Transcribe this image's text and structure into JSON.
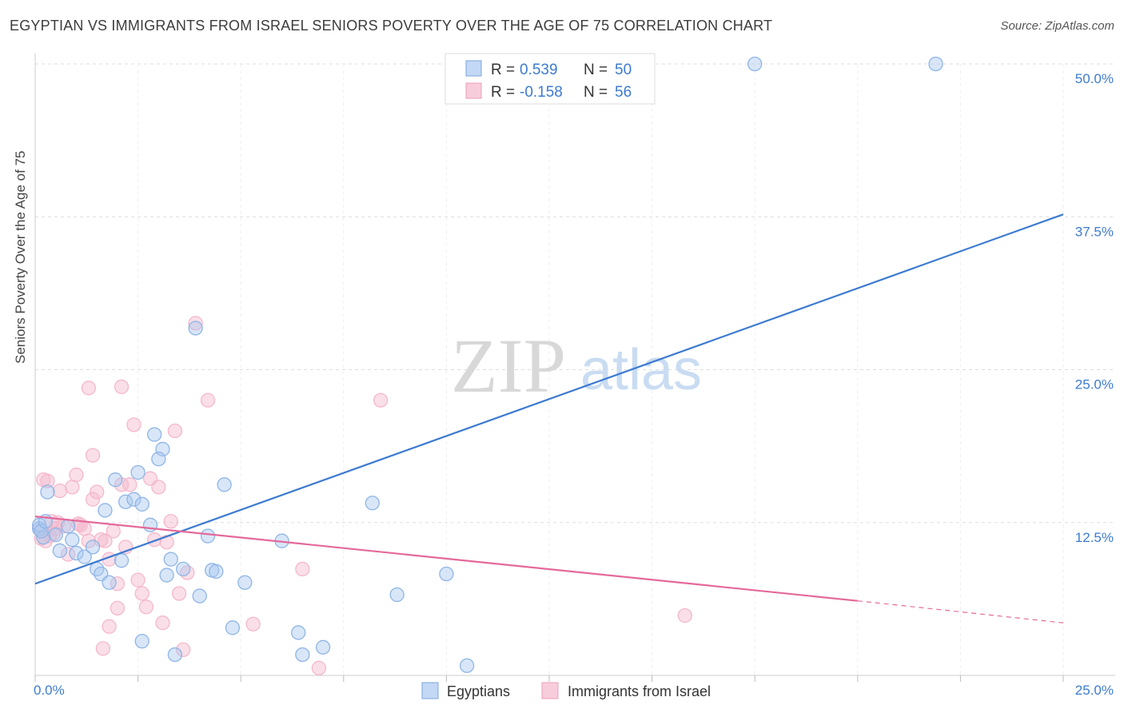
{
  "title": "EGYPTIAN VS IMMIGRANTS FROM ISRAEL SENIORS POVERTY OVER THE AGE OF 75 CORRELATION CHART",
  "source": "Source: ZipAtlas.com",
  "watermark": {
    "zip": "ZIP",
    "atlas": "atlas"
  },
  "colors": {
    "blue": "#3d7bd0",
    "blue_fill": "#a9c8ef",
    "pink": "#e4699a",
    "pink_fill": "#f5b8cc",
    "grid": "#dddddd",
    "axis_text": "#3d7bd0"
  },
  "legend_top": [
    {
      "r_label": "R = ",
      "r_value": "0.539",
      "n_label": "N = ",
      "n_value": "50",
      "color": "blue"
    },
    {
      "r_label": "R = ",
      "r_value": "-0.158",
      "n_label": "N = ",
      "n_value": "56",
      "color": "pink"
    }
  ],
  "legend_bottom": [
    "Egyptians",
    "Immigrants from Israel"
  ],
  "chart_data": {
    "type": "scatter",
    "title": "EGYPTIAN VS IMMIGRANTS FROM ISRAEL SENIORS POVERTY OVER THE AGE OF 75 CORRELATION CHART",
    "xlabel": "",
    "ylabel": "Seniors Poverty Over the Age of 75",
    "xlim": [
      0,
      25
    ],
    "ylim": [
      0,
      50
    ],
    "x_tick_labels": [
      "0.0%",
      "25.0%"
    ],
    "y_ticks": [
      12.5,
      25.0,
      37.5,
      50.0
    ],
    "y_tick_labels": [
      "12.5%",
      "25.0%",
      "37.5%",
      "50.0%"
    ],
    "grid": true,
    "series": [
      {
        "name": "Egyptians",
        "color": "blue",
        "trend": {
          "x0": 0.0,
          "y0": 7.5,
          "x1": 25.0,
          "y1": 37.7
        },
        "points": [
          [
            0.1,
            12.0
          ],
          [
            0.2,
            11.3
          ],
          [
            0.3,
            15.0
          ],
          [
            0.5,
            11.5
          ],
          [
            0.6,
            10.2
          ],
          [
            0.8,
            12.2
          ],
          [
            0.9,
            11.1
          ],
          [
            1.0,
            10.0
          ],
          [
            1.2,
            9.7
          ],
          [
            1.4,
            10.5
          ],
          [
            1.5,
            8.7
          ],
          [
            1.6,
            8.3
          ],
          [
            1.7,
            13.5
          ],
          [
            1.8,
            7.6
          ],
          [
            1.95,
            16.0
          ],
          [
            2.1,
            9.4
          ],
          [
            2.2,
            14.2
          ],
          [
            2.4,
            14.4
          ],
          [
            2.6,
            14.0
          ],
          [
            2.8,
            12.3
          ],
          [
            2.5,
            16.6
          ],
          [
            2.9,
            19.7
          ],
          [
            3.1,
            18.5
          ],
          [
            3.0,
            17.7
          ],
          [
            3.2,
            8.2
          ],
          [
            3.3,
            9.5
          ],
          [
            3.6,
            8.7
          ],
          [
            3.9,
            28.4
          ],
          [
            4.0,
            6.5
          ],
          [
            4.2,
            11.4
          ],
          [
            4.3,
            8.6
          ],
          [
            4.4,
            8.5
          ],
          [
            4.6,
            15.6
          ],
          [
            4.8,
            3.9
          ],
          [
            5.1,
            7.6
          ],
          [
            6.0,
            11.0
          ],
          [
            6.4,
            3.5
          ],
          [
            6.5,
            1.7
          ],
          [
            7.0,
            2.3
          ],
          [
            8.2,
            14.1
          ],
          [
            8.8,
            6.6
          ],
          [
            10.0,
            8.3
          ],
          [
            10.5,
            0.8
          ],
          [
            2.6,
            2.8
          ],
          [
            3.4,
            1.7
          ],
          [
            17.5,
            50.0
          ],
          [
            21.9,
            50.0
          ],
          [
            0.1,
            12.3
          ],
          [
            0.15,
            11.8
          ],
          [
            0.25,
            12.6
          ]
        ]
      },
      {
        "name": "Immigrants from Israel",
        "color": "pink",
        "trend": {
          "x0": 0.0,
          "y0": 13.0,
          "x1": 20.0,
          "y1": 6.1,
          "dash_to_x": 25.0,
          "dash_to_y": 4.3
        },
        "points": [
          [
            0.1,
            12.0
          ],
          [
            0.15,
            11.2
          ],
          [
            0.2,
            16.0
          ],
          [
            0.3,
            15.9
          ],
          [
            0.4,
            12.6
          ],
          [
            0.5,
            12.0
          ],
          [
            0.6,
            15.1
          ],
          [
            0.7,
            12.2
          ],
          [
            0.8,
            9.9
          ],
          [
            0.9,
            15.4
          ],
          [
            1.0,
            16.4
          ],
          [
            1.1,
            12.3
          ],
          [
            1.2,
            12.0
          ],
          [
            1.3,
            11.0
          ],
          [
            1.4,
            14.4
          ],
          [
            1.5,
            15.0
          ],
          [
            1.6,
            11.1
          ],
          [
            1.7,
            11.0
          ],
          [
            1.8,
            9.5
          ],
          [
            1.9,
            11.8
          ],
          [
            2.0,
            7.5
          ],
          [
            2.1,
            15.6
          ],
          [
            2.2,
            10.5
          ],
          [
            2.3,
            15.6
          ],
          [
            2.4,
            20.5
          ],
          [
            2.5,
            7.8
          ],
          [
            2.6,
            6.7
          ],
          [
            2.7,
            5.6
          ],
          [
            2.8,
            16.1
          ],
          [
            2.9,
            11.1
          ],
          [
            3.0,
            15.4
          ],
          [
            3.1,
            4.3
          ],
          [
            3.2,
            10.9
          ],
          [
            3.3,
            12.6
          ],
          [
            3.4,
            20.0
          ],
          [
            3.5,
            6.7
          ],
          [
            3.6,
            2.1
          ],
          [
            3.7,
            8.4
          ],
          [
            3.9,
            28.8
          ],
          [
            4.2,
            22.5
          ],
          [
            5.3,
            4.2
          ],
          [
            6.5,
            8.7
          ],
          [
            6.9,
            0.6
          ],
          [
            8.4,
            22.5
          ],
          [
            15.8,
            4.9
          ],
          [
            1.3,
            23.5
          ],
          [
            2.1,
            23.6
          ],
          [
            1.4,
            18.0
          ],
          [
            1.65,
            2.2
          ],
          [
            1.8,
            4.0
          ],
          [
            2.0,
            5.5
          ],
          [
            0.25,
            11.0
          ],
          [
            0.45,
            11.6
          ],
          [
            0.55,
            12.5
          ],
          [
            1.05,
            12.4
          ],
          [
            0.35,
            11.4
          ]
        ]
      }
    ]
  }
}
